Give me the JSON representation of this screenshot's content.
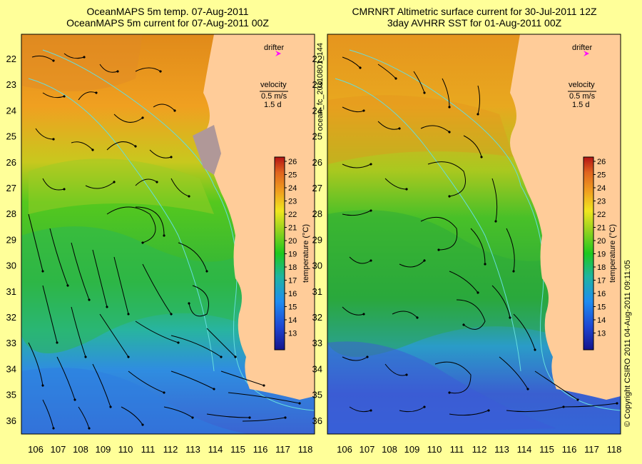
{
  "left_panel": {
    "title_line1": "OceanMAPS 5m temp. 07-Aug-2011",
    "title_line2": "OceanMAPS 5m current for 07-Aug-2011 00Z"
  },
  "right_panel": {
    "title_line1": "CMRNRT Altimetric surface current for 30-Jul-2011 12Z",
    "title_line2": "3day AVHRR SST for 01-Aug-2011 00Z"
  },
  "legend": {
    "drifter_label": "drifter",
    "velocity_label": "velocity",
    "velocity_scale": "0.5 m/s",
    "velocity_time": "1.5 d"
  },
  "colorbar": {
    "label": "temperature (°C)",
    "ticks": [
      "26",
      "25",
      "24",
      "23",
      "22",
      "21",
      "20",
      "19",
      "18",
      "17",
      "16",
      "15",
      "14",
      "13"
    ]
  },
  "axes": {
    "lat_ticks": [
      "22",
      "23",
      "24",
      "25",
      "26",
      "27",
      "28",
      "29",
      "30",
      "31",
      "32",
      "33",
      "34",
      "35",
      "36"
    ],
    "lon_ticks": [
      "106",
      "107",
      "108",
      "109",
      "110",
      "111",
      "112",
      "113",
      "114",
      "115",
      "116",
      "117",
      "118"
    ]
  },
  "side_text": {
    "product_id": "ocean_fc_20110801_144",
    "copyright": "© Copyright CSIRO 2011   04-Aug-2011 09:11:05"
  },
  "colors": {
    "background": "#ffff99",
    "land": "#ffcc99",
    "drifter": "#ff00ff",
    "bathymetry": "#66dddd"
  }
}
